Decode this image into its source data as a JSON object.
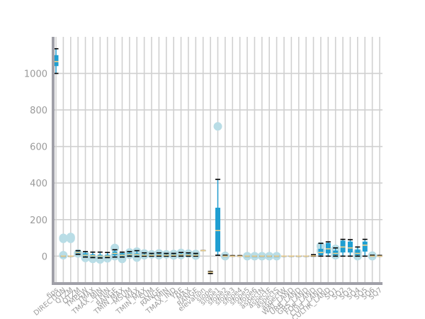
{
  "chart_data": {
    "type": "box",
    "title": "",
    "xlabel": "",
    "ylabel": "",
    "ylim": [
      -150,
      1200
    ],
    "yticks": [
      0,
      200,
      400,
      600,
      800,
      1000
    ],
    "grid": true,
    "colors": {
      "box": "#1f9ed1",
      "outlier": "#b9dde6",
      "median": "#f2d08a",
      "whisker": "#1f9ed1",
      "cap": "#000000",
      "grid": "#d0d0d0",
      "axis": "#a0a0a8",
      "tick_label": "#9a9a9a"
    },
    "categories": [
      "fips",
      "DIRECTION",
      "QTZM",
      "QTZM",
      "TMPEW",
      "TMAX",
      "TMAX_MIN",
      "TMIN",
      "RANGE",
      "TMIN_MAX",
      "MSUM",
      "MAX",
      "TMIN_MAX",
      "SUM",
      "RANGE",
      "TMIN",
      "TMAX_IND",
      "YRE",
      "MAX",
      "RANGE",
      "elevation",
      "slope",
      "slope1",
      "slope2",
      "slope3",
      "slope4",
      "slope5",
      "slope6",
      "aspectN",
      "aspectE",
      "aspectS",
      "aspectW",
      "WAT_LAND",
      "URB_LAND",
      "GRS_LAND",
      "FOR_LAND",
      "CULT_LAND",
      "CULTIR_LAND",
      "SQ1",
      "SQ2",
      "SQ3",
      "SQ4",
      "SQ5",
      "SQ6",
      "SQ7"
    ],
    "boxes": [
      {
        "min": 1000,
        "q1": 1040,
        "median": 1065,
        "q3": 1100,
        "max": 1135,
        "outliers": []
      },
      {
        "min": 0,
        "q1": 0,
        "median": 0,
        "q3": 0,
        "max": 0,
        "outliers": [
          95,
          100,
          5
        ]
      },
      {
        "min": 0,
        "q1": 0,
        "median": 0,
        "q3": 0,
        "max": 0,
        "outliers": [
          100,
          105,
          95
        ]
      },
      {
        "min": 10,
        "q1": 15,
        "median": 20,
        "q3": 25,
        "max": 30,
        "outliers": [
          15
        ]
      },
      {
        "min": -5,
        "q1": 0,
        "median": 5,
        "q3": 15,
        "max": 25,
        "outliers": [
          -10,
          5
        ]
      },
      {
        "min": -8,
        "q1": -3,
        "median": 2,
        "q3": 10,
        "max": 22,
        "outliers": [
          -15
        ]
      },
      {
        "min": -10,
        "q1": -5,
        "median": 0,
        "q3": 8,
        "max": 22,
        "outliers": [
          -18
        ]
      },
      {
        "min": -8,
        "q1": -4,
        "median": 0,
        "q3": 7,
        "max": 20,
        "outliers": [
          -12
        ]
      },
      {
        "min": -5,
        "q1": 5,
        "median": 15,
        "q3": 25,
        "max": 35,
        "outliers": [
          45,
          0
        ]
      },
      {
        "min": -5,
        "q1": 0,
        "median": 5,
        "q3": 15,
        "max": 22,
        "outliers": [
          -15,
          2
        ]
      },
      {
        "min": 0,
        "q1": 5,
        "median": 10,
        "q3": 18,
        "max": 25,
        "outliers": [
          20,
          8
        ]
      },
      {
        "min": -2,
        "q1": 3,
        "median": 8,
        "q3": 15,
        "max": 30,
        "outliers": [
          25,
          -8
        ]
      },
      {
        "min": 0,
        "q1": 2,
        "median": 5,
        "q3": 10,
        "max": 18,
        "outliers": [
          15,
          5
        ]
      },
      {
        "min": 0,
        "q1": 2,
        "median": 5,
        "q3": 10,
        "max": 15,
        "outliers": [
          10
        ]
      },
      {
        "min": 0,
        "q1": 3,
        "median": 6,
        "q3": 12,
        "max": 18,
        "outliers": [
          15,
          5
        ]
      },
      {
        "min": 0,
        "q1": 2,
        "median": 5,
        "q3": 10,
        "max": 15,
        "outliers": [
          10
        ]
      },
      {
        "min": 0,
        "q1": 2,
        "median": 5,
        "q3": 10,
        "max": 15,
        "outliers": [
          12,
          4
        ]
      },
      {
        "min": 0,
        "q1": 3,
        "median": 7,
        "q3": 12,
        "max": 20,
        "outliers": [
          18,
          6
        ]
      },
      {
        "min": 0,
        "q1": 3,
        "median": 6,
        "q3": 12,
        "max": 18,
        "outliers": [
          14
        ]
      },
      {
        "min": 0,
        "q1": 2,
        "median": 5,
        "q3": 10,
        "max": 15,
        "outliers": [
          12,
          3
        ]
      },
      {
        "min": 30,
        "q1": 30,
        "median": 30,
        "q3": 30,
        "max": 30,
        "outliers": []
      },
      {
        "min": -95,
        "q1": -90,
        "median": -88,
        "q3": -86,
        "max": -84,
        "outliers": []
      },
      {
        "min": 5,
        "q1": 25,
        "median": 140,
        "q3": 265,
        "max": 420,
        "outliers": [
          710
        ]
      },
      {
        "min": 0,
        "q1": 0,
        "median": 0,
        "q3": 2,
        "max": 5,
        "outliers": [
          0,
          2
        ]
      },
      {
        "min": 0,
        "q1": 0,
        "median": 0,
        "q3": 1,
        "max": 3,
        "outliers": []
      },
      {
        "min": 0,
        "q1": 0,
        "median": 0,
        "q3": 1,
        "max": 3,
        "outliers": []
      },
      {
        "min": 0,
        "q1": 0,
        "median": 0,
        "q3": 0,
        "max": 0,
        "outliers": [
          0
        ]
      },
      {
        "min": 0,
        "q1": 0,
        "median": 0,
        "q3": 0,
        "max": 0,
        "outliers": [
          0
        ]
      },
      {
        "min": 0,
        "q1": 0,
        "median": 0,
        "q3": 0,
        "max": 0,
        "outliers": [
          0
        ]
      },
      {
        "min": 0,
        "q1": 0,
        "median": 0,
        "q3": 0,
        "max": 0,
        "outliers": [
          0
        ]
      },
      {
        "min": 0,
        "q1": 0,
        "median": 0,
        "q3": 0,
        "max": 0,
        "outliers": [
          0
        ]
      },
      {
        "min": 0,
        "q1": 0,
        "median": 0,
        "q3": 0,
        "max": 0,
        "outliers": []
      },
      {
        "min": 0,
        "q1": 0,
        "median": 0,
        "q3": 0,
        "max": 0,
        "outliers": []
      },
      {
        "min": 0,
        "q1": 0,
        "median": 0,
        "q3": 0,
        "max": 0,
        "outliers": []
      },
      {
        "min": 0,
        "q1": 0,
        "median": 0,
        "q3": 0,
        "max": 0,
        "outliers": []
      },
      {
        "min": 0,
        "q1": 1,
        "median": 2,
        "q3": 4,
        "max": 8,
        "outliers": []
      },
      {
        "min": 0,
        "q1": 5,
        "median": 20,
        "q3": 40,
        "max": 70,
        "outliers": [
          55,
          30
        ]
      },
      {
        "min": 0,
        "q1": 15,
        "median": 40,
        "q3": 72,
        "max": 78,
        "outliers": []
      },
      {
        "min": 0,
        "q1": 5,
        "median": 15,
        "q3": 30,
        "max": 45,
        "outliers": [
          40,
          5,
          20
        ]
      },
      {
        "min": 0,
        "q1": 20,
        "median": 50,
        "q3": 85,
        "max": 92,
        "outliers": []
      },
      {
        "min": 0,
        "q1": 20,
        "median": 45,
        "q3": 80,
        "max": 90,
        "outliers": []
      },
      {
        "min": 0,
        "q1": 5,
        "median": 15,
        "q3": 35,
        "max": 50,
        "outliers": [
          0,
          20
        ]
      },
      {
        "min": 0,
        "q1": 25,
        "median": 60,
        "q3": 80,
        "max": 92,
        "outliers": []
      },
      {
        "min": 0,
        "q1": 0,
        "median": 0,
        "q3": 2,
        "max": 5,
        "outliers": [
          0,
          3
        ]
      },
      {
        "min": 0,
        "q1": 0,
        "median": 0,
        "q3": 2,
        "max": 4,
        "outliers": []
      }
    ]
  }
}
